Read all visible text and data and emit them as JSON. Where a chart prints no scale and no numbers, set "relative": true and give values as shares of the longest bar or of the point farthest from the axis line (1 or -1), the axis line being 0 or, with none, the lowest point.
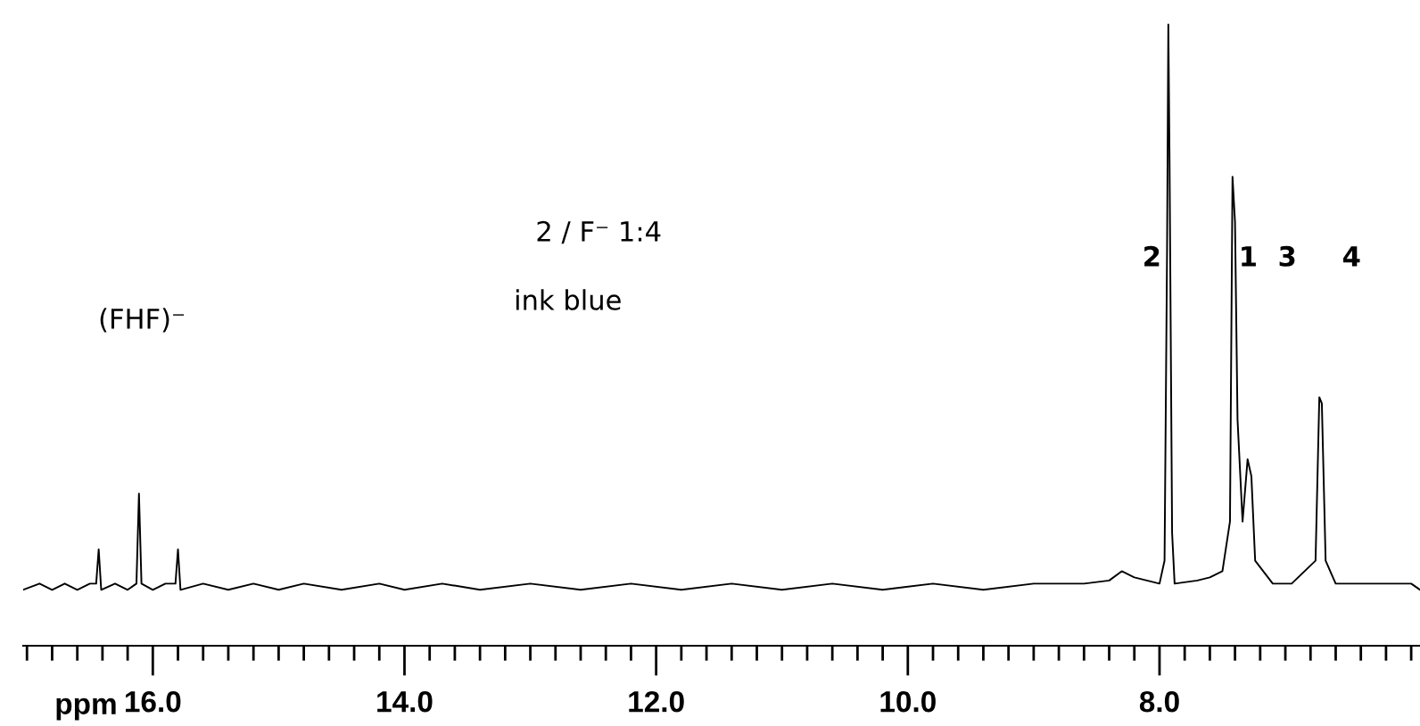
{
  "chart_data": {
    "type": "line",
    "relative": true,
    "xlabel": "ppm",
    "x": [
      17.03,
      16.9,
      16.8,
      16.7,
      16.6,
      16.5,
      16.45,
      16.43,
      16.41,
      16.3,
      16.2,
      16.13,
      16.11,
      16.09,
      16.0,
      15.9,
      15.82,
      15.8,
      15.78,
      15.6,
      15.4,
      15.2,
      15.0,
      14.8,
      14.5,
      14.2,
      14.0,
      13.7,
      13.4,
      13.0,
      12.6,
      12.2,
      11.8,
      11.4,
      11.0,
      10.6,
      10.2,
      9.8,
      9.4,
      9.0,
      8.6,
      8.4,
      8.3,
      8.2,
      8.0,
      7.96,
      7.94,
      7.93,
      7.92,
      7.9,
      7.88,
      7.7,
      7.6,
      7.5,
      7.44,
      7.42,
      7.4,
      7.38,
      7.34,
      7.3,
      7.27,
      7.24,
      7.1,
      6.95,
      6.76,
      6.73,
      6.71,
      6.68,
      6.6,
      6.4,
      6.2,
      6.0,
      5.93
    ],
    "series": [
      {
        "color": "#000000",
        "values": [
          0.09,
          0.1,
          0.09,
          0.1,
          0.09,
          0.1,
          0.1,
          0.155,
          0.09,
          0.1,
          0.09,
          0.1,
          0.245,
          0.1,
          0.09,
          0.1,
          0.1,
          0.155,
          0.09,
          0.1,
          0.09,
          0.1,
          0.09,
          0.1,
          0.09,
          0.1,
          0.09,
          0.1,
          0.09,
          0.1,
          0.09,
          0.1,
          0.09,
          0.1,
          0.09,
          0.1,
          0.09,
          0.1,
          0.09,
          0.1,
          0.1,
          0.105,
          0.12,
          0.11,
          0.1,
          0.137,
          0.636,
          1.0,
          0.773,
          0.182,
          0.1,
          0.105,
          0.11,
          0.12,
          0.2,
          0.755,
          0.682,
          0.364,
          0.2,
          0.3,
          0.273,
          0.137,
          0.1,
          0.1,
          0.137,
          0.4,
          0.39,
          0.137,
          0.1,
          0.1,
          0.1,
          0.1,
          0.09
        ]
      }
    ],
    "xlim": [
      17.03,
      5.93
    ],
    "xticks": [
      {
        "value": 17.0,
        "label": null
      },
      {
        "value": 16.8,
        "label": null
      },
      {
        "value": 16.6,
        "label": null
      },
      {
        "value": 16.4,
        "label": null
      },
      {
        "value": 16.2,
        "label": null
      },
      {
        "value": 16.0,
        "label": "16.0"
      },
      {
        "value": 15.8,
        "label": null
      },
      {
        "value": 15.6,
        "label": null
      },
      {
        "value": 15.4,
        "label": null
      },
      {
        "value": 15.2,
        "label": null
      },
      {
        "value": 15.0,
        "label": null
      },
      {
        "value": 14.8,
        "label": null
      },
      {
        "value": 14.6,
        "label": null
      },
      {
        "value": 14.4,
        "label": null
      },
      {
        "value": 14.2,
        "label": null
      },
      {
        "value": 14.0,
        "label": "14.0"
      },
      {
        "value": 13.8,
        "label": null
      },
      {
        "value": 13.6,
        "label": null
      },
      {
        "value": 13.4,
        "label": null
      },
      {
        "value": 13.2,
        "label": null
      },
      {
        "value": 13.0,
        "label": null
      },
      {
        "value": 12.8,
        "label": null
      },
      {
        "value": 12.6,
        "label": null
      },
      {
        "value": 12.4,
        "label": null
      },
      {
        "value": 12.2,
        "label": null
      },
      {
        "value": 12.0,
        "label": "12.0"
      },
      {
        "value": 11.8,
        "label": null
      },
      {
        "value": 11.6,
        "label": null
      },
      {
        "value": 11.4,
        "label": null
      },
      {
        "value": 11.2,
        "label": null
      },
      {
        "value": 11.0,
        "label": null
      },
      {
        "value": 10.8,
        "label": null
      },
      {
        "value": 10.6,
        "label": null
      },
      {
        "value": 10.4,
        "label": null
      },
      {
        "value": 10.2,
        "label": null
      },
      {
        "value": 10.0,
        "label": "10.0"
      },
      {
        "value": 9.8,
        "label": null
      },
      {
        "value": 9.6,
        "label": null
      },
      {
        "value": 9.4,
        "label": null
      },
      {
        "value": 9.2,
        "label": null
      },
      {
        "value": 9.0,
        "label": null
      },
      {
        "value": 8.8,
        "label": null
      },
      {
        "value": 8.6,
        "label": null
      },
      {
        "value": 8.4,
        "label": null
      },
      {
        "value": 8.2,
        "label": null
      },
      {
        "value": 8.0,
        "label": "8.0"
      },
      {
        "value": 7.8,
        "label": null
      },
      {
        "value": 7.6,
        "label": null
      },
      {
        "value": 7.4,
        "label": null
      },
      {
        "value": 7.2,
        "label": null
      },
      {
        "value": 7.0,
        "label": null
      },
      {
        "value": 6.8,
        "label": null
      },
      {
        "value": 6.6,
        "label": null
      },
      {
        "value": 6.4,
        "label": null
      },
      {
        "value": 6.2,
        "label": null
      },
      {
        "value": 6.0,
        "label": null
      }
    ],
    "tick_labels": "x",
    "annotations": [
      "2 / F⁻ 1:4",
      "ink blue",
      "(FHF)⁻",
      "2",
      "1",
      "3",
      "4"
    ]
  }
}
